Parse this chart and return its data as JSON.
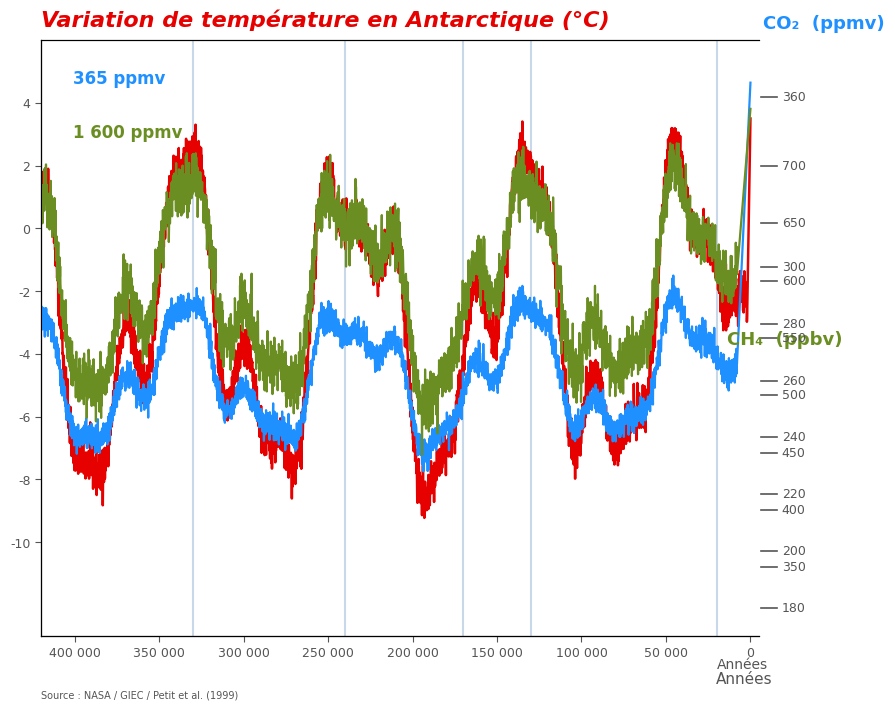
{
  "title": "Variation de température en Antarctique (°C)",
  "title_color": "#e60000",
  "co2_label": "CO₂  (ppmv)",
  "ch4_label": "CH₄  (ppbv)",
  "co2_color": "#1e90ff",
  "ch4_color": "#6b8e23",
  "temp_color": "#e60000",
  "background_color": "#ffffff",
  "tick_color": "#555555",
  "co2_current_label": "365 ppmv",
  "ch4_current_label": "1 600 ppmv",
  "xlim_left": 420000,
  "xlim_right": -5000,
  "vline_positions": [
    330000,
    240000,
    170000,
    130000,
    20000
  ],
  "vline_color": "#c8d8e8",
  "xlabel": "Années",
  "xticks": [
    0,
    50000,
    100000,
    150000,
    200000,
    250000,
    300000,
    350000,
    400000
  ],
  "xtick_labels": [
    "0",
    "50 000",
    "100 000",
    "150 000",
    "200 000",
    "250 000",
    "300 000",
    "350 000",
    "400 000"
  ],
  "temp_yticks": [
    -10,
    -8,
    -6,
    -4,
    -2,
    0,
    2,
    4
  ],
  "temp_ylim": [
    -13,
    6
  ],
  "co2_yticks": [
    180,
    200,
    220,
    240,
    260,
    280,
    300,
    360
  ],
  "co2_ylim": [
    170,
    380
  ],
  "ch4_yticks": [
    350,
    400,
    450,
    500,
    550,
    600,
    650,
    700
  ],
  "ch4_ylim": [
    290,
    810
  ],
  "title_fontsize": 16,
  "label_fontsize": 13,
  "annot_fontsize": 12,
  "tick_fontsize": 9
}
